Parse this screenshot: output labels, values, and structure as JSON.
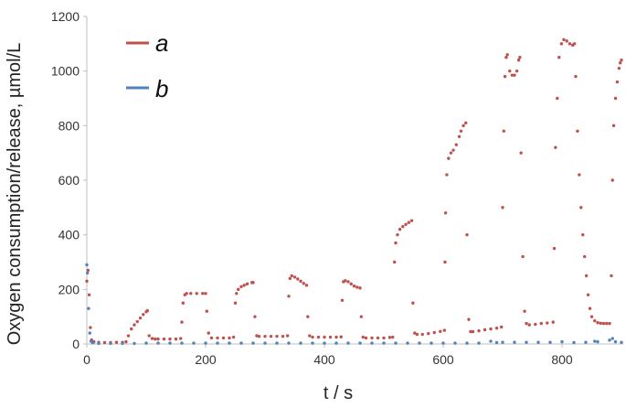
{
  "chart_data": {
    "type": "scatter",
    "xlabel": "t / s",
    "ylabel": "Oxygen consumption/release, µmol/L",
    "xlim": [
      0,
      900
    ],
    "ylim": [
      0,
      1200
    ],
    "x_ticks": [
      0,
      200,
      400,
      600,
      800
    ],
    "y_ticks": [
      0,
      200,
      400,
      600,
      800,
      1000,
      1200
    ],
    "legend_position": "top-left",
    "series": [
      {
        "name": "a",
        "color": "#c0504d",
        "points": [
          [
            0,
            230
          ],
          [
            2,
            270
          ],
          [
            4,
            180
          ],
          [
            6,
            60
          ],
          [
            8,
            15
          ],
          [
            12,
            8
          ],
          [
            20,
            6
          ],
          [
            30,
            5
          ],
          [
            40,
            5
          ],
          [
            50,
            6
          ],
          [
            60,
            6
          ],
          [
            66,
            8
          ],
          [
            70,
            30
          ],
          [
            75,
            55
          ],
          [
            80,
            70
          ],
          [
            85,
            82
          ],
          [
            90,
            95
          ],
          [
            95,
            108
          ],
          [
            100,
            118
          ],
          [
            102,
            122
          ],
          [
            105,
            30
          ],
          [
            110,
            20
          ],
          [
            115,
            18
          ],
          [
            120,
            18
          ],
          [
            130,
            18
          ],
          [
            140,
            18
          ],
          [
            150,
            18
          ],
          [
            158,
            20
          ],
          [
            160,
            80
          ],
          [
            162,
            150
          ],
          [
            165,
            180
          ],
          [
            168,
            185
          ],
          [
            175,
            185
          ],
          [
            185,
            185
          ],
          [
            195,
            185
          ],
          [
            200,
            185
          ],
          [
            202,
            120
          ],
          [
            205,
            40
          ],
          [
            210,
            22
          ],
          [
            220,
            22
          ],
          [
            230,
            22
          ],
          [
            240,
            22
          ],
          [
            247,
            25
          ],
          [
            250,
            150
          ],
          [
            252,
            185
          ],
          [
            255,
            200
          ],
          [
            260,
            210
          ],
          [
            265,
            215
          ],
          [
            270,
            220
          ],
          [
            278,
            225
          ],
          [
            280,
            225
          ],
          [
            283,
            100
          ],
          [
            286,
            30
          ],
          [
            290,
            28
          ],
          [
            300,
            28
          ],
          [
            310,
            28
          ],
          [
            320,
            28
          ],
          [
            330,
            28
          ],
          [
            338,
            30
          ],
          [
            340,
            175
          ],
          [
            342,
            240
          ],
          [
            345,
            250
          ],
          [
            350,
            245
          ],
          [
            355,
            238
          ],
          [
            360,
            230
          ],
          [
            365,
            222
          ],
          [
            370,
            215
          ],
          [
            372,
            100
          ],
          [
            375,
            30
          ],
          [
            380,
            25
          ],
          [
            390,
            25
          ],
          [
            400,
            25
          ],
          [
            410,
            25
          ],
          [
            420,
            25
          ],
          [
            428,
            26
          ],
          [
            430,
            160
          ],
          [
            432,
            228
          ],
          [
            435,
            232
          ],
          [
            440,
            228
          ],
          [
            445,
            220
          ],
          [
            450,
            212
          ],
          [
            455,
            208
          ],
          [
            460,
            205
          ],
          [
            462,
            100
          ],
          [
            465,
            25
          ],
          [
            470,
            22
          ],
          [
            480,
            22
          ],
          [
            490,
            22
          ],
          [
            500,
            22
          ],
          [
            510,
            24
          ],
          [
            515,
            25
          ],
          [
            518,
            300
          ],
          [
            520,
            370
          ],
          [
            523,
            400
          ],
          [
            527,
            420
          ],
          [
            532,
            430
          ],
          [
            537,
            438
          ],
          [
            542,
            445
          ],
          [
            547,
            452
          ],
          [
            549,
            150
          ],
          [
            552,
            40
          ],
          [
            556,
            35
          ],
          [
            565,
            35
          ],
          [
            575,
            38
          ],
          [
            585,
            42
          ],
          [
            595,
            46
          ],
          [
            602,
            50
          ],
          [
            603,
            300
          ],
          [
            604,
            480
          ],
          [
            606,
            620
          ],
          [
            609,
            680
          ],
          [
            613,
            700
          ],
          [
            617,
            710
          ],
          [
            622,
            730
          ],
          [
            627,
            760
          ],
          [
            630,
            780
          ],
          [
            634,
            800
          ],
          [
            638,
            810
          ],
          [
            640,
            400
          ],
          [
            643,
            90
          ],
          [
            646,
            45
          ],
          [
            650,
            45
          ],
          [
            660,
            48
          ],
          [
            670,
            52
          ],
          [
            680,
            55
          ],
          [
            690,
            58
          ],
          [
            698,
            62
          ],
          [
            700,
            500
          ],
          [
            702,
            780
          ],
          [
            704,
            980
          ],
          [
            706,
            1050
          ],
          [
            708,
            1060
          ],
          [
            712,
            1000
          ],
          [
            716,
            985
          ],
          [
            720,
            985
          ],
          [
            724,
            1000
          ],
          [
            727,
            1040
          ],
          [
            729,
            1050
          ],
          [
            731,
            700
          ],
          [
            734,
            320
          ],
          [
            737,
            120
          ],
          [
            740,
            75
          ],
          [
            745,
            70
          ],
          [
            755,
            72
          ],
          [
            765,
            75
          ],
          [
            775,
            77
          ],
          [
            785,
            80
          ],
          [
            787,
            350
          ],
          [
            789,
            720
          ],
          [
            792,
            900
          ],
          [
            795,
            1050
          ],
          [
            799,
            1100
          ],
          [
            803,
            1115
          ],
          [
            808,
            1110
          ],
          [
            813,
            1100
          ],
          [
            818,
            1095
          ],
          [
            821,
            1100
          ],
          [
            823,
            980
          ],
          [
            826,
            780
          ],
          [
            829,
            620
          ],
          [
            832,
            500
          ],
          [
            835,
            400
          ],
          [
            838,
            320
          ],
          [
            841,
            250
          ],
          [
            844,
            180
          ],
          [
            847,
            130
          ],
          [
            850,
            100
          ],
          [
            855,
            85
          ],
          [
            860,
            78
          ],
          [
            865,
            76
          ],
          [
            870,
            75
          ],
          [
            875,
            75
          ],
          [
            880,
            75
          ],
          [
            883,
            250
          ],
          [
            885,
            600
          ],
          [
            887,
            800
          ],
          [
            890,
            900
          ],
          [
            893,
            960
          ],
          [
            896,
            1010
          ],
          [
            898,
            1030
          ],
          [
            900,
            1040
          ]
        ]
      },
      {
        "name": "b",
        "color": "#4f81bd",
        "points": [
          [
            0,
            290
          ],
          [
            1,
            260
          ],
          [
            3,
            130
          ],
          [
            5,
            40
          ],
          [
            7,
            10
          ],
          [
            10,
            4
          ],
          [
            20,
            2
          ],
          [
            40,
            2
          ],
          [
            60,
            2
          ],
          [
            80,
            2
          ],
          [
            100,
            3
          ],
          [
            120,
            3
          ],
          [
            140,
            3
          ],
          [
            160,
            3
          ],
          [
            180,
            3
          ],
          [
            200,
            3
          ],
          [
            220,
            3
          ],
          [
            240,
            3
          ],
          [
            260,
            3
          ],
          [
            280,
            3
          ],
          [
            300,
            3
          ],
          [
            320,
            3
          ],
          [
            340,
            3
          ],
          [
            360,
            3
          ],
          [
            380,
            3
          ],
          [
            400,
            3
          ],
          [
            420,
            3
          ],
          [
            440,
            3
          ],
          [
            460,
            3
          ],
          [
            480,
            3
          ],
          [
            500,
            3
          ],
          [
            520,
            3
          ],
          [
            540,
            3
          ],
          [
            560,
            3
          ],
          [
            580,
            3
          ],
          [
            600,
            3
          ],
          [
            620,
            3
          ],
          [
            640,
            3
          ],
          [
            660,
            3
          ],
          [
            680,
            10
          ],
          [
            690,
            5
          ],
          [
            700,
            6
          ],
          [
            720,
            6
          ],
          [
            740,
            6
          ],
          [
            760,
            6
          ],
          [
            780,
            6
          ],
          [
            800,
            8
          ],
          [
            820,
            5
          ],
          [
            840,
            6
          ],
          [
            855,
            10
          ],
          [
            860,
            8
          ],
          [
            880,
            14
          ],
          [
            885,
            20
          ],
          [
            890,
            8
          ],
          [
            900,
            6
          ]
        ]
      }
    ]
  }
}
